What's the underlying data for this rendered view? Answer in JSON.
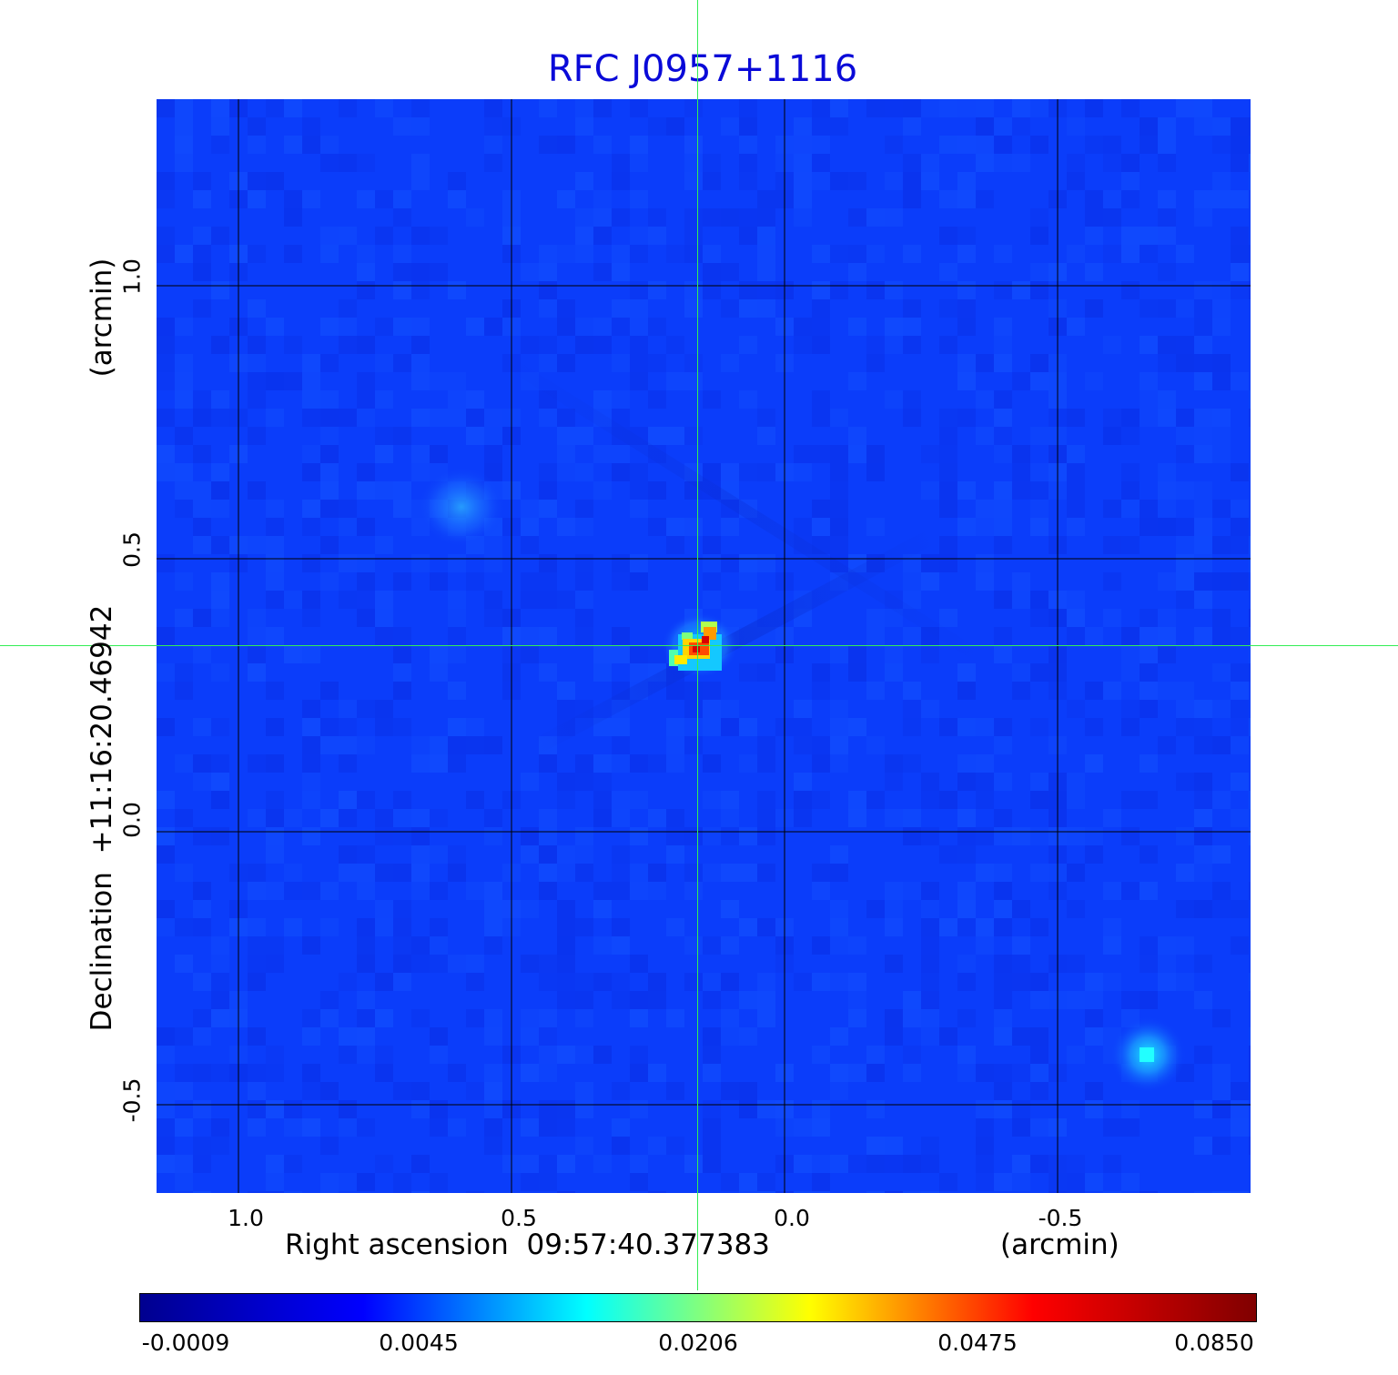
{
  "title": "RFC J0957+1116",
  "x_axis": {
    "label": "Right ascension  09:57:40.377383",
    "unit": "(arcmin)",
    "ticks": [
      "1.0",
      "0.5",
      "0.0",
      "-0.5"
    ]
  },
  "y_axis": {
    "label": "Declination  +11:16:20.46942",
    "unit": "(arcmin)",
    "ticks": [
      "1.0",
      "0.5",
      "0.0",
      "-0.5"
    ]
  },
  "colorbar": {
    "ticks": [
      "-0.0009",
      "0.0045",
      "0.0206",
      "0.0475",
      "0.0850"
    ],
    "colors": [
      "#00008f",
      "#0000ff",
      "#00ffff",
      "#ffff00",
      "#ff0000",
      "#800000"
    ]
  },
  "image": {
    "background_color": "#0b3dfa",
    "grid_color": "#000000",
    "crosshair_color": "#33ee55",
    "sources": [
      {
        "name": "main-source",
        "ra_arcmin": 0.16,
        "dec_arcmin": 0.34,
        "peak": 0.085
      },
      {
        "name": "secondary-source-ne",
        "ra_arcmin": 0.59,
        "dec_arcmin": 0.6,
        "peak": 0.004
      },
      {
        "name": "secondary-source-se",
        "ra_arcmin": -0.67,
        "dec_arcmin": -0.41,
        "peak": 0.01
      }
    ]
  }
}
